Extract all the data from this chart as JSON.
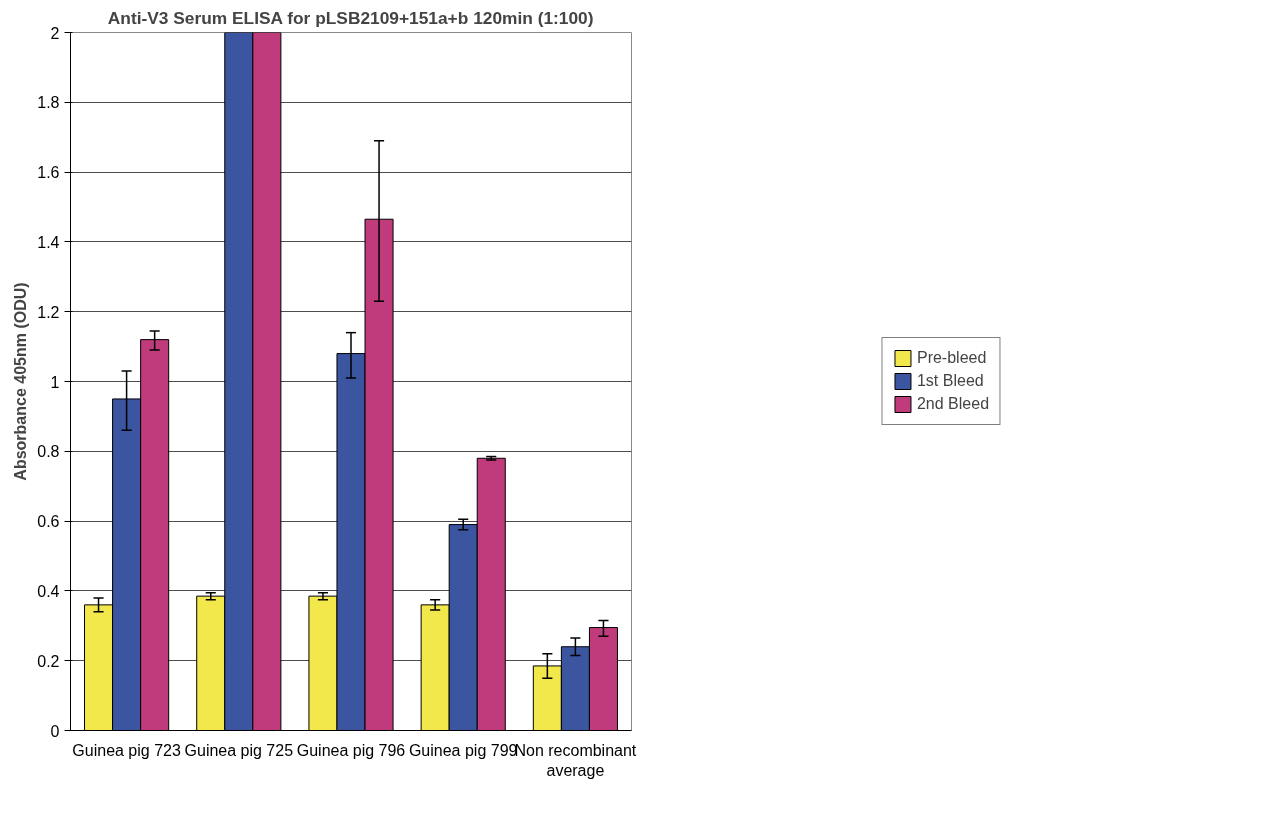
{
  "chart_data": {
    "type": "bar",
    "title": "Anti-V3 Serum ELISA for pLSB2109+151a+b 120min (1:100)",
    "ylabel": "Absorbance 405nm (ODU)",
    "categories": [
      "Guinea pig 723",
      "Guinea pig 725",
      "Guinea pig 796",
      "Guinea pig 799",
      "Non recombinant average"
    ],
    "series": [
      {
        "name": "Pre-bleed",
        "color": "#f2e74b",
        "values": [
          0.36,
          0.385,
          0.385,
          0.36,
          0.185
        ],
        "errors": [
          [
            0.34,
            0.38
          ],
          [
            0.375,
            0.395
          ],
          [
            0.375,
            0.395
          ],
          [
            0.345,
            0.375
          ],
          [
            0.15,
            0.22
          ]
        ]
      },
      {
        "name": "1st Bleed",
        "color": "#3b55a0",
        "values": [
          0.95,
          2,
          1.08,
          0.59,
          0.24
        ],
        "errors": [
          [
            0.86,
            1.03
          ],
          null,
          [
            1.01,
            1.14
          ],
          [
            0.575,
            0.605
          ],
          [
            0.215,
            0.265
          ]
        ]
      },
      {
        "name": "2nd Bleed",
        "color": "#bf3b7b",
        "values": [
          1.12,
          2,
          1.465,
          0.78,
          0.295
        ],
        "errors": [
          [
            1.09,
            1.145
          ],
          null,
          [
            1.23,
            1.69
          ],
          [
            0.775,
            0.785
          ],
          [
            0.27,
            0.315
          ]
        ]
      }
    ],
    "ylim": [
      0,
      2
    ],
    "yticks": [
      0,
      0.2,
      0.4,
      0.6,
      0.8,
      1,
      1.2,
      1.4,
      1.6,
      1.8,
      2
    ],
    "grid": "y",
    "legend": "right"
  }
}
